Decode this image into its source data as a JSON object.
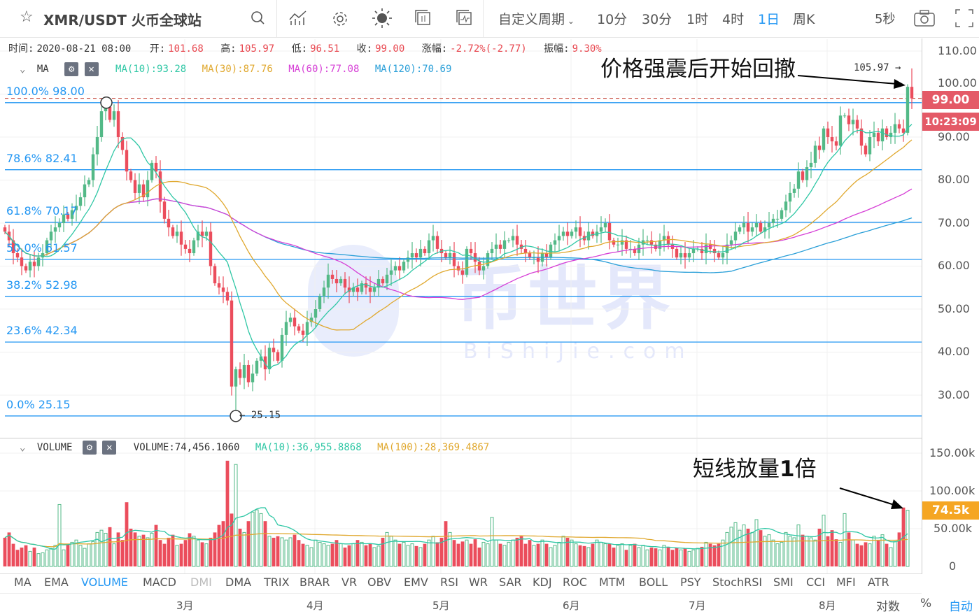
{
  "header": {
    "title": "XMR/USDT 火币全球站",
    "custom_period": "自定义周期",
    "periods": [
      "10分",
      "30分",
      "1时",
      "4时",
      "1日",
      "周K"
    ],
    "active_period": "1日",
    "refresh": "5秒",
    "icons": [
      "star-icon",
      "search-icon",
      "indicator-icon",
      "settings-icon",
      "theme-icon",
      "layout-icon",
      "chart-type-icon",
      "camera-icon",
      "fullscreen-icon"
    ]
  },
  "info": {
    "time_label": "时间:",
    "time": "2020-08-21 08:00",
    "open_label": "开:",
    "open": "101.68",
    "high_label": "高:",
    "high": "105.97",
    "low_label": "低:",
    "low": "96.51",
    "close_label": "收:",
    "close": "99.00",
    "change_label": "涨幅:",
    "change": "-2.72%(-2.77)",
    "amp_label": "振幅:",
    "amp": "9.30%"
  },
  "ma_legend": {
    "name": "MA",
    "ma10": "MA(10):93.28",
    "ma30": "MA(30):87.76",
    "ma60": "MA(60):77.08",
    "ma120": "MA(120):70.69"
  },
  "vol_legend": {
    "name": "VOLUME",
    "volume": "VOLUME:74,456.1060",
    "ma10": "MA(10):36,955.8868",
    "ma100": "MA(100):28,369.4867"
  },
  "colors": {
    "up": "#53b987",
    "down": "#eb4d5c",
    "ma10": "#2fc7a5",
    "ma30": "#e0a82e",
    "ma60": "#d63fd6",
    "ma120": "#2a9fd8",
    "fib": "#2196f3",
    "accent": "#2196f3",
    "volume_tag": "#f5a623"
  },
  "annotations": {
    "top": "价格强震后开始回撤",
    "bottom_text": "短线放量",
    "bottom_bold": "1",
    "bottom_suffix": "倍",
    "high_marker": "105.97 →",
    "low_marker": "← 25.15"
  },
  "price_tag": {
    "price": "99.00",
    "countdown": "10:23:09"
  },
  "volume_tag": "74.5k",
  "watermark": {
    "main": "币世界",
    "sub": "BiShiJie.com"
  },
  "indicator_tabs": [
    "MA",
    "EMA",
    "VOLUME",
    "MACD",
    "DMI",
    "DMA",
    "TRIX",
    "BRAR",
    "VR",
    "OBV",
    "EMV",
    "RSI",
    "WR",
    "SAR",
    "KDJ",
    "ROC",
    "MTM",
    "BOLL",
    "PSY",
    "StochRSI",
    "SMI",
    "CCI",
    "MFI",
    "ATR"
  ],
  "active_indicator": "VOLUME",
  "footer": {
    "log": "对数",
    "percent": "%",
    "auto": "自动"
  },
  "chart_data": {
    "type": "candlestick",
    "title": "XMR/USDT 1日",
    "y_ticks": [
      "110.00",
      "100.00",
      "90.00",
      "80.00",
      "70.00",
      "60.00",
      "50.00",
      "40.00",
      "30.00"
    ],
    "ylim": [
      22,
      115
    ],
    "x_ticks": [
      "3月",
      "4月",
      "5月",
      "6月",
      "7月",
      "8月"
    ],
    "fibonacci": [
      {
        "label": "100.0% 98.00",
        "value": 98.0
      },
      {
        "label": "78.6% 82.41",
        "value": 82.41
      },
      {
        "label": "61.8% 70.17",
        "value": 70.17
      },
      {
        "label": "50.0% 61.57",
        "value": 61.57
      },
      {
        "label": "38.2% 52.98",
        "value": 52.98
      },
      {
        "label": "23.6% 42.34",
        "value": 42.34
      },
      {
        "label": "0.0% 25.15",
        "value": 25.15
      }
    ],
    "closes": [
      68,
      66,
      63,
      62,
      60,
      59,
      61,
      60,
      62,
      63,
      66,
      68,
      69,
      70,
      72,
      71,
      73,
      74,
      76,
      79,
      80,
      86,
      90,
      96,
      97,
      94,
      96,
      90,
      87,
      82,
      80,
      77,
      79,
      76,
      80,
      84,
      82,
      75,
      71,
      69,
      67,
      68,
      65,
      64,
      63,
      66,
      68,
      67,
      68,
      60,
      56,
      55,
      54,
      52,
      32,
      36,
      34,
      37,
      33,
      35,
      38,
      39,
      36,
      41,
      40,
      38,
      44,
      47,
      48,
      46,
      45,
      44,
      47,
      48,
      50,
      53,
      55,
      58,
      57,
      56,
      57,
      55,
      54,
      55,
      54,
      56,
      55,
      54,
      55,
      57,
      56,
      58,
      59,
      60,
      59,
      61,
      62,
      63,
      62,
      64,
      63,
      66,
      67,
      64,
      63,
      62,
      63,
      60,
      59,
      58,
      64,
      63,
      61,
      59,
      60,
      63,
      64,
      65,
      64,
      66,
      66,
      67,
      65,
      64,
      63,
      62,
      62,
      61,
      63,
      62,
      65,
      66,
      67,
      68,
      67,
      68,
      69,
      67,
      66,
      68,
      67,
      68,
      69,
      70,
      66,
      65,
      65,
      66,
      64,
      64,
      63,
      65,
      66,
      66,
      65,
      64,
      66,
      67,
      65,
      64,
      62,
      63,
      62,
      63,
      64,
      64,
      63,
      65,
      64,
      63,
      62,
      63,
      65,
      66,
      68,
      69,
      70,
      68,
      69,
      70,
      68,
      69,
      70,
      71,
      71,
      73,
      75,
      77,
      78,
      82,
      80,
      83,
      84,
      88,
      87,
      92,
      90,
      89,
      88,
      95,
      95,
      93,
      94,
      92,
      88,
      86,
      90,
      91,
      89,
      92,
      90,
      91,
      93,
      92,
      91,
      101.68,
      99.0
    ],
    "volume_unit": "k",
    "volume_ticks": [
      "150.00k",
      "100.00k",
      "50.00k",
      "0"
    ],
    "volumes": [
      38,
      45,
      30,
      22,
      25,
      28,
      20,
      25,
      17,
      18,
      22,
      24,
      28,
      82,
      22,
      30,
      32,
      35,
      28,
      24,
      30,
      33,
      45,
      48,
      44,
      52,
      30,
      45,
      35,
      85,
      50,
      45,
      40,
      42,
      38,
      44,
      55,
      35,
      30,
      38,
      42,
      28,
      30,
      35,
      44,
      40,
      35,
      32,
      30,
      38,
      45,
      55,
      60,
      140,
      70,
      135,
      50,
      45,
      60,
      72,
      75,
      70,
      60,
      40,
      38,
      40,
      38,
      35,
      38,
      42,
      35,
      30,
      28,
      25,
      35,
      32,
      30,
      28,
      30,
      35,
      30,
      25,
      28,
      30,
      35,
      32,
      28,
      30,
      25,
      27,
      38,
      45,
      40,
      35,
      30,
      32,
      28,
      30,
      27,
      25,
      30,
      35,
      40,
      32,
      38,
      60,
      45,
      35,
      30,
      33,
      35,
      30,
      36,
      25,
      32,
      30,
      65,
      35,
      30,
      28,
      32,
      35,
      38,
      40,
      30,
      35,
      28,
      30,
      35,
      30,
      25,
      28,
      32,
      40,
      38,
      35,
      30,
      28,
      27,
      25,
      30,
      35,
      32,
      30,
      30,
      25,
      28,
      30,
      22,
      28,
      30,
      25,
      28,
      22,
      25,
      24,
      22,
      28,
      25,
      22,
      25,
      22,
      24,
      20,
      22,
      24,
      26,
      32,
      30,
      28,
      30,
      35,
      45,
      52,
      58,
      48,
      55,
      50,
      45,
      62,
      48,
      40,
      42,
      35,
      30,
      32,
      45,
      40,
      38,
      55,
      42,
      40,
      38,
      35,
      50,
      68,
      40,
      48,
      36,
      32,
      70,
      45,
      35,
      30,
      28,
      32,
      30,
      40,
      35,
      42,
      30,
      25,
      33,
      45,
      78,
      74.456
    ]
  }
}
